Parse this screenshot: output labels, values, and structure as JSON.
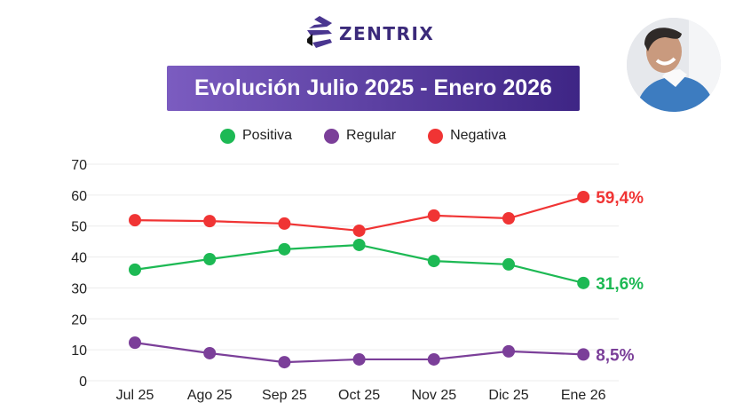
{
  "brand": {
    "name": "ZENTRIX",
    "logo": "zentrix-logo"
  },
  "avatar": {
    "description_icon": "person-photo"
  },
  "chart_data": {
    "type": "line",
    "title": "Evolución Julio 2025 - Enero 2026",
    "xlabel": "",
    "ylabel": "",
    "categories": [
      "Jul 25",
      "Ago 25",
      "Sep 25",
      "Oct 25",
      "Nov 25",
      "Dic 25",
      "Ene 26"
    ],
    "ylim": [
      0,
      70
    ],
    "yticks": [
      0,
      10,
      20,
      30,
      40,
      50,
      60,
      70
    ],
    "grid": true,
    "legend_position": "top",
    "series": [
      {
        "name": "Positiva",
        "color": "#1db954",
        "values": [
          35.9,
          39.3,
          42.5,
          43.9,
          38.7,
          37.6,
          31.6
        ],
        "end_label": "31,6%"
      },
      {
        "name": "Regular",
        "color": "#7b3f99",
        "values": [
          12.3,
          8.9,
          6.0,
          6.9,
          6.9,
          9.5,
          8.5
        ],
        "end_label": "8,5%"
      },
      {
        "name": "Negativa",
        "color": "#f03434",
        "values": [
          51.9,
          51.6,
          50.8,
          48.5,
          53.4,
          52.5,
          59.4
        ],
        "end_label": "59,4%"
      }
    ]
  }
}
